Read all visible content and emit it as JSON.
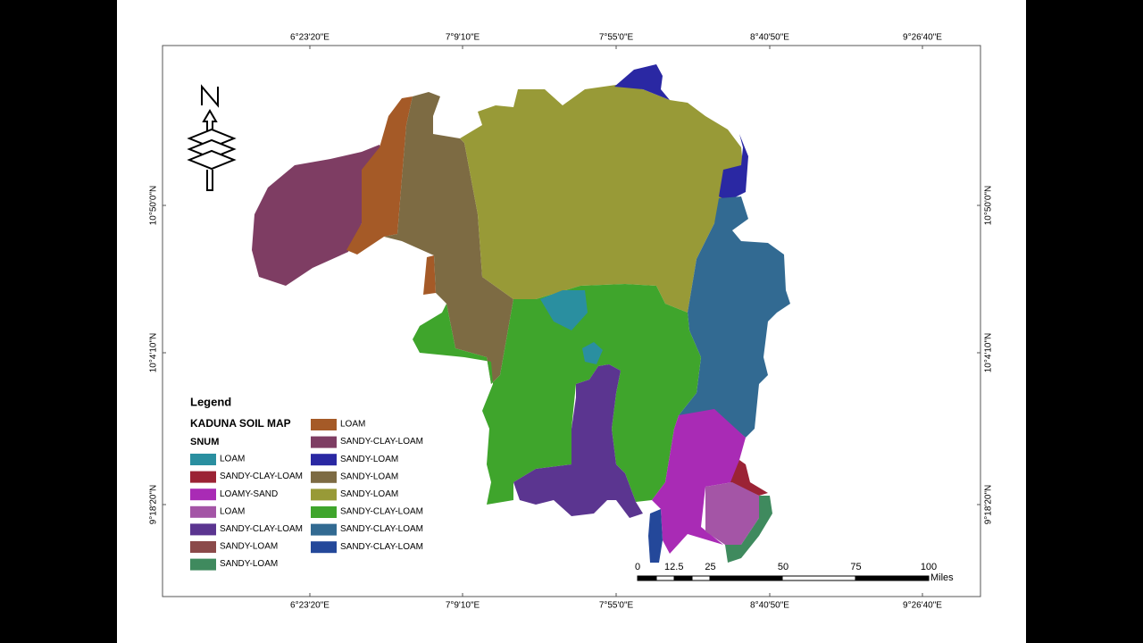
{
  "map": {
    "graticule": {
      "longitudes": [
        "6°23'20\"E",
        "7°9'10\"E",
        "7°55'0\"E",
        "8°40'50\"E",
        "9°26'40\"E"
      ],
      "latitudes": [
        "10°50'0\"N",
        "10°4'10\"N",
        "9°18'20\"N"
      ]
    },
    "legend": {
      "title": "Legend",
      "layer": "KADUNA SOIL MAP",
      "field": "SNUM",
      "items": [
        {
          "label": "LOAM",
          "color": "#2a8fa0"
        },
        {
          "label": "SANDY-CLAY-LOAM",
          "color": "#9b2335"
        },
        {
          "label": "LOAMY-SAND",
          "color": "#a92bb5"
        },
        {
          "label": "LOAM",
          "color": "#a455a6"
        },
        {
          "label": "SANDY-CLAY-LOAM",
          "color": "#5b3590"
        },
        {
          "label": "SANDY-LOAM",
          "color": "#8b4a4a"
        },
        {
          "label": "SANDY-LOAM",
          "color": "#3f8a5e"
        },
        {
          "label": "LOAM",
          "color": "#a55a27"
        },
        {
          "label": "SANDY-CLAY-LOAM",
          "color": "#7e3d63"
        },
        {
          "label": "SANDY-LOAM",
          "color": "#2a28a3"
        },
        {
          "label": "SANDY-LOAM",
          "color": "#7d6b43"
        },
        {
          "label": "SANDY-LOAM",
          "color": "#989a37"
        },
        {
          "label": "SANDY-CLAY-LOAM",
          "color": "#3fa52c"
        },
        {
          "label": "SANDY-CLAY-LOAM",
          "color": "#326a92"
        },
        {
          "label": "SANDY-CLAY-LOAM",
          "color": "#24489a"
        }
      ]
    },
    "scale_bar": {
      "ticks": [
        0,
        12.5,
        25,
        50,
        75,
        100
      ],
      "unit": "Miles"
    }
  }
}
